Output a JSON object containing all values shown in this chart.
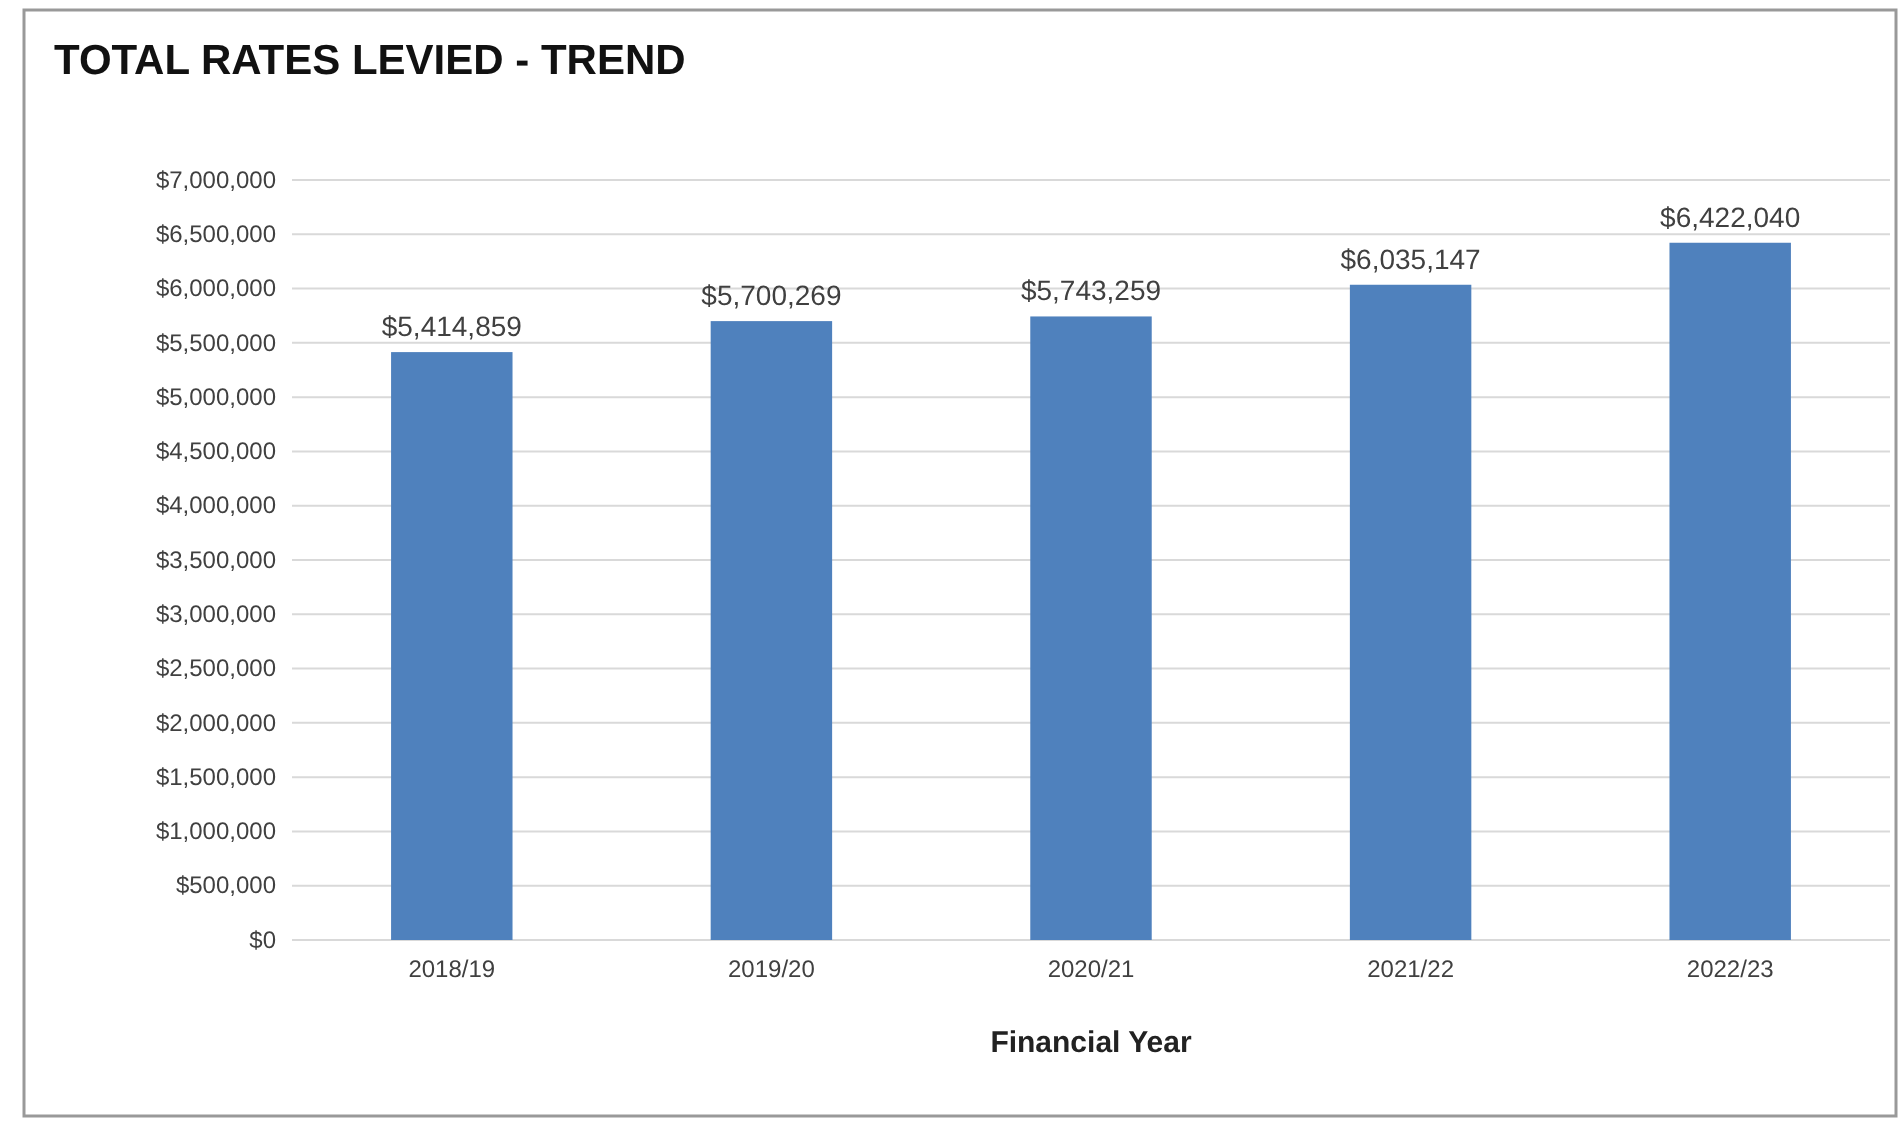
{
  "chart_data": {
    "type": "bar",
    "title": "TOTAL RATES LEVIED - TREND",
    "xlabel": "Financial Year",
    "categories": [
      "2018/19",
      "2019/20",
      "2020/21",
      "2021/22",
      "2022/23"
    ],
    "values": [
      5414859,
      5700269,
      5743259,
      6035147,
      6422040
    ],
    "value_labels": [
      "$5,414,859",
      "$5,700,269",
      "$5,743,259",
      "$6,035,147",
      "$6,422,040"
    ],
    "color": "#4f81bd",
    "ylim": [
      0,
      7000000
    ],
    "yticks": [
      {
        "value": 0,
        "label": "$0"
      },
      {
        "value": 500000,
        "label": "$500,000"
      },
      {
        "value": 1000000,
        "label": "$1,000,000"
      },
      {
        "value": 1500000,
        "label": "$1,500,000"
      },
      {
        "value": 2000000,
        "label": "$2,000,000"
      },
      {
        "value": 2500000,
        "label": "$2,500,000"
      },
      {
        "value": 3000000,
        "label": "$3,000,000"
      },
      {
        "value": 3500000,
        "label": "$3,500,000"
      },
      {
        "value": 4000000,
        "label": "$4,000,000"
      },
      {
        "value": 4500000,
        "label": "$4,500,000"
      },
      {
        "value": 5000000,
        "label": "$5,000,000"
      },
      {
        "value": 5500000,
        "label": "$5,500,000"
      },
      {
        "value": 6000000,
        "label": "$6,000,000"
      },
      {
        "value": 6500000,
        "label": "$6,500,000"
      },
      {
        "value": 7000000,
        "label": "$7,000,000"
      }
    ],
    "grid": "y"
  }
}
